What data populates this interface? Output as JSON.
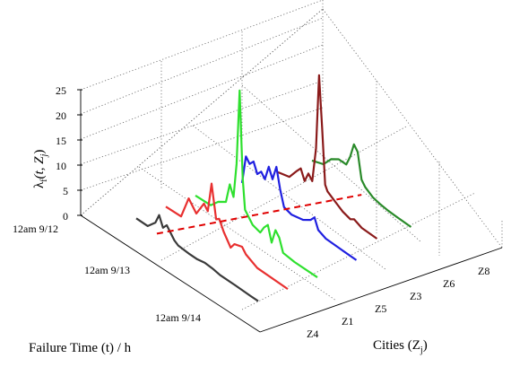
{
  "chart_data": {
    "type": "line",
    "subtype": "3d-waterfall",
    "title": "",
    "xlabel": "Failure Time (t) / h",
    "ylabel": "Cities (Z",
    "ylabel_sub": "j",
    "ylabel_close": ")",
    "zlabel_main": "λ",
    "zlabel_sub": "f",
    "zlabel_args": "(t, Z",
    "zlabel_args_sub": "j",
    "zlabel_close": ")",
    "zlim": [
      0,
      25
    ],
    "z_ticks": [
      "0",
      "5",
      "10",
      "15",
      "20",
      "25"
    ],
    "x_ticks": [
      "12am 9/12",
      "12am 9/13",
      "12am 9/14"
    ],
    "y_ticks": [
      "Z4",
      "Z1",
      "Z5",
      "Z3",
      "Z6",
      "Z8"
    ],
    "grid": true,
    "series": [
      {
        "name": "Z4",
        "color": "#3a3a3a",
        "points": [
          [
            0,
            0.3
          ],
          [
            1.5,
            0.3
          ],
          [
            2.5,
            2
          ],
          [
            3,
            4
          ],
          [
            3.5,
            2
          ],
          [
            4,
            3
          ],
          [
            5,
            1
          ],
          [
            5.5,
            0.5
          ],
          [
            7,
            0.3
          ],
          [
            8,
            0.3
          ],
          [
            9,
            0.6
          ],
          [
            10,
            0.5
          ],
          [
            11,
            0.2
          ],
          [
            13,
            0.2
          ],
          [
            15,
            0.1
          ],
          [
            16,
            0.1
          ]
        ]
      },
      {
        "name": "Z1",
        "color": "#e83030",
        "points": [
          [
            0,
            0.3
          ],
          [
            2,
            0.4
          ],
          [
            3,
            5
          ],
          [
            4,
            3
          ],
          [
            5,
            6
          ],
          [
            5.5,
            5
          ],
          [
            6,
            11
          ],
          [
            6.6,
            4.5
          ],
          [
            7,
            5
          ],
          [
            7.6,
            3
          ],
          [
            8.5,
            0.8
          ],
          [
            9,
            2
          ],
          [
            10,
            2.5
          ],
          [
            10.5,
            1.5
          ],
          [
            12,
            0.3
          ],
          [
            16,
            0.2
          ]
        ]
      },
      {
        "name": "Z5",
        "color": "#2ee02e",
        "points": [
          [
            0,
            0.2
          ],
          [
            2,
            0.3
          ],
          [
            3,
            2
          ],
          [
            4,
            3
          ],
          [
            4.5,
            7
          ],
          [
            5,
            5
          ],
          [
            5.4,
            12
          ],
          [
            5.8,
            27
          ],
          [
            6.2,
            10
          ],
          [
            6.5,
            4
          ],
          [
            7.5,
            2
          ],
          [
            8.5,
            1.5
          ],
          [
            9,
            3
          ],
          [
            9.5,
            4
          ],
          [
            10,
            1
          ],
          [
            10.5,
            4
          ],
          [
            11,
            3
          ],
          [
            11.5,
            0.5
          ],
          [
            13,
            0.2
          ],
          [
            16,
            0.2
          ]
        ]
      },
      {
        "name": "Z3",
        "color": "#2020e0",
        "points": [
          [
            0,
            0.2
          ],
          [
            0.5,
            6
          ],
          [
            1,
            5
          ],
          [
            1.5,
            6
          ],
          [
            2,
            4
          ],
          [
            2.5,
            5
          ],
          [
            3,
            4
          ],
          [
            3.5,
            7
          ],
          [
            4,
            5
          ],
          [
            4.5,
            8
          ],
          [
            5,
            4
          ],
          [
            5.5,
            1
          ],
          [
            6.5,
            0.5
          ],
          [
            8,
            1
          ],
          [
            9,
            2
          ],
          [
            9.5,
            3
          ],
          [
            10,
            1
          ],
          [
            11,
            0.3
          ],
          [
            13,
            0.2
          ],
          [
            15,
            0.1
          ]
        ]
      },
      {
        "name": "Z6",
        "color": "#8a1a1a",
        "points": [
          [
            0,
            0.2
          ],
          [
            1.5,
            0.8
          ],
          [
            2.5,
            3
          ],
          [
            3,
            4
          ],
          [
            3.5,
            2
          ],
          [
            4,
            4
          ],
          [
            4.5,
            3
          ],
          [
            5,
            10
          ],
          [
            5.4,
            25
          ],
          [
            5.8,
            15
          ],
          [
            6.2,
            4
          ],
          [
            6.5,
            3
          ],
          [
            7.5,
            2
          ],
          [
            8.5,
            1
          ],
          [
            9.5,
            0.5
          ],
          [
            10,
            1
          ],
          [
            11,
            0.3
          ],
          [
            13,
            0.2
          ]
        ]
      },
      {
        "name": "Z8",
        "color": "#2a8a2a",
        "points": [
          [
            0,
            0.2
          ],
          [
            1.5,
            1
          ],
          [
            2.5,
            3
          ],
          [
            3.5,
            4
          ],
          [
            4.5,
            4
          ],
          [
            5,
            6
          ],
          [
            5.5,
            9
          ],
          [
            6,
            8
          ],
          [
            6.5,
            3
          ],
          [
            7,
            2
          ],
          [
            8,
            1
          ],
          [
            9,
            0.6
          ],
          [
            10,
            0.4
          ],
          [
            11,
            0.3
          ],
          [
            13,
            0.2
          ]
        ]
      }
    ],
    "marker_line": {
      "color": "#e00000",
      "style": "dashed",
      "t": 2.7
    }
  }
}
